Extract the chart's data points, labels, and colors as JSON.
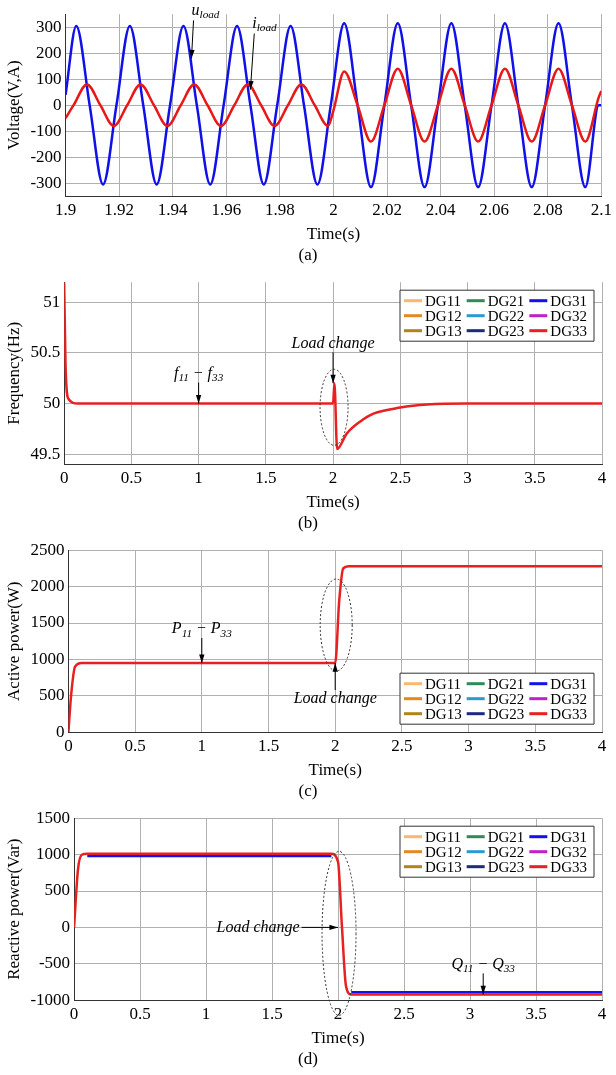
{
  "chart_data": [
    {
      "type": "line",
      "xlabel": "Time(s)",
      "ylabel": "Voltage(V,A)",
      "xlim": [
        1.9,
        2.1
      ],
      "xticks": [
        1.9,
        1.92,
        1.94,
        1.96,
        1.98,
        2,
        2.02,
        2.04,
        2.06,
        2.08,
        2.1
      ],
      "ylim": [
        -350,
        350
      ],
      "yticks": [
        -300,
        -200,
        -100,
        0,
        100,
        200,
        300
      ],
      "grid": true,
      "legend": false,
      "annotations": [
        {
          "text": "u$_{load}$",
          "x": 1.947,
          "y": 180
        },
        {
          "text": "i$_{load}$",
          "x": 1.969,
          "y": 60
        },
        "(a)"
      ],
      "series": [
        {
          "color": "#1010e8",
          "x": [
            1.9,
            1.904,
            1.909,
            1.914,
            1.919,
            1.924,
            1.929,
            1.934,
            1.939,
            1.944,
            1.949,
            1.954,
            1.959,
            1.964,
            1.969,
            1.974,
            1.979,
            1.984,
            1.989,
            1.994,
            1.999,
            2.004,
            2.009,
            2.014,
            2.019,
            2.024,
            2.029,
            2.034,
            2.039,
            2.044,
            2.049,
            2.054,
            2.059,
            2.064,
            2.069,
            2.074,
            2.079,
            2.084,
            2.089,
            2.094,
            2.099,
            2.1
          ],
          "values": [
            40,
            305,
            0,
            -305,
            0,
            305,
            0,
            -305,
            0,
            305,
            0,
            -305,
            0,
            305,
            0,
            -305,
            0,
            305,
            0,
            -305,
            0,
            315,
            0,
            -315,
            0,
            315,
            0,
            -315,
            0,
            315,
            0,
            -315,
            0,
            315,
            0,
            -315,
            0,
            315,
            0,
            -315,
            0,
            0
          ]
        },
        {
          "color": "#e81818",
          "x": [
            1.9,
            1.903,
            1.908,
            1.913,
            1.918,
            1.923,
            1.928,
            1.933,
            1.938,
            1.943,
            1.948,
            1.953,
            1.958,
            1.963,
            1.968,
            1.973,
            1.978,
            1.983,
            1.988,
            1.993,
            1.998,
            2.0,
            2.004,
            2.009,
            2.014,
            2.019,
            2.024,
            2.029,
            2.034,
            2.039,
            2.044,
            2.049,
            2.054,
            2.059,
            2.064,
            2.069,
            2.074,
            2.079,
            2.084,
            2.089,
            2.094,
            2.099,
            2.1
          ],
          "values": [
            -50,
            0,
            80,
            0,
            -80,
            0,
            80,
            0,
            -80,
            0,
            80,
            0,
            -80,
            0,
            80,
            0,
            -80,
            0,
            80,
            0,
            -80,
            -20,
            130,
            0,
            -140,
            0,
            140,
            0,
            -140,
            0,
            140,
            0,
            -140,
            0,
            140,
            0,
            -140,
            0,
            140,
            0,
            -140,
            30,
            55
          ]
        }
      ]
    },
    {
      "type": "line",
      "xlabel": "Time(s)",
      "ylabel": "Frequency(Hz)",
      "xlim": [
        0,
        4
      ],
      "xticks": [
        0,
        0.5,
        1,
        1.5,
        2,
        2.5,
        3,
        3.5,
        4
      ],
      "ylim": [
        49.4,
        51.2
      ],
      "yticks": [
        49.5,
        50,
        50.5,
        51
      ],
      "grid": true,
      "legend": "top right",
      "annotations": [
        {
          "text": "f$_{11}$ − f$_{33}$",
          "x": 1,
          "y": 50
        },
        {
          "text": "Load change",
          "x": 2,
          "y": 50.2
        },
        "(b)"
      ],
      "series": [
        {
          "name": "DG11",
          "color": "#f8b870"
        },
        {
          "name": "DG12",
          "color": "#e08a20"
        },
        {
          "name": "DG13",
          "color": "#b08418"
        },
        {
          "name": "DG21",
          "color": "#2e8a5a"
        },
        {
          "name": "DG22",
          "color": "#2a9ad0"
        },
        {
          "name": "DG23",
          "color": "#1a2a80"
        },
        {
          "name": "DG31",
          "color": "#1010f0"
        },
        {
          "name": "DG32",
          "color": "#c020c8"
        },
        {
          "name": "DG33",
          "color": "#e82020",
          "x": [
            0,
            0.01,
            0.03,
            0.1,
            2,
            2.01,
            2.03,
            2.1,
            2.2,
            2.3,
            2.5,
            2.7,
            3,
            4
          ],
          "values": [
            51.2,
            50.4,
            50.05,
            50,
            50,
            50.2,
            49.55,
            49.7,
            49.82,
            49.9,
            49.96,
            49.99,
            50,
            50
          ]
        }
      ]
    },
    {
      "type": "line",
      "xlabel": "Time(s)",
      "ylabel": "Active power(W)",
      "xlim": [
        0,
        4
      ],
      "xticks": [
        0,
        0.5,
        1,
        1.5,
        2,
        2.5,
        3,
        3.5,
        4
      ],
      "ylim": [
        0,
        2500
      ],
      "yticks": [
        0,
        500,
        1000,
        1500,
        2000,
        2500
      ],
      "grid": true,
      "legend": "bottom right",
      "annotations": [
        {
          "text": "P$_{11}$ − P$_{33}$",
          "x": 1,
          "y": 950
        },
        {
          "text": "Load change",
          "x": 2,
          "y": 950
        },
        "(c)"
      ],
      "series": [
        {
          "name": "DG11",
          "color": "#f8b870"
        },
        {
          "name": "DG12",
          "color": "#e08a20"
        },
        {
          "name": "DG13",
          "color": "#b08418"
        },
        {
          "name": "DG21",
          "color": "#2e8a5a"
        },
        {
          "name": "DG22",
          "color": "#2a9ad0"
        },
        {
          "name": "DG23",
          "color": "#1a2a80"
        },
        {
          "name": "DG31",
          "color": "#1010f0"
        },
        {
          "name": "DG32",
          "color": "#c020c8"
        },
        {
          "name": "DG33",
          "color": "#e82020",
          "x": [
            0,
            0.02,
            0.05,
            0.1,
            2,
            2.03,
            2.06,
            2.1,
            4
          ],
          "values": [
            0,
            500,
            900,
            950,
            950,
            1800,
            2250,
            2280,
            2280
          ]
        }
      ]
    },
    {
      "type": "line",
      "xlabel": "Time(s)",
      "ylabel": "Reactive power(Var)",
      "xlim": [
        0,
        4
      ],
      "xticks": [
        0,
        0.5,
        1,
        1.5,
        2,
        2.5,
        3,
        3.5,
        4
      ],
      "ylim": [
        -1000,
        1500
      ],
      "yticks": [
        -1000,
        -500,
        0,
        500,
        1000,
        1500
      ],
      "grid": true,
      "legend": "top right",
      "annotations": [
        {
          "text": "Load change",
          "x": 2,
          "y": 0
        },
        {
          "text": "Q$_{11}$ − Q$_{33}$",
          "x": 3.1,
          "y": -920
        },
        "(d)"
      ],
      "series": [
        {
          "name": "DG11",
          "color": "#f8b870"
        },
        {
          "name": "DG12",
          "color": "#e08a20"
        },
        {
          "name": "DG13",
          "color": "#b08418"
        },
        {
          "name": "DG21",
          "color": "#2e8a5a"
        },
        {
          "name": "DG22",
          "color": "#2a9ad0"
        },
        {
          "name": "DG23",
          "color": "#1a2a80"
        },
        {
          "name": "DG31",
          "color": "#1010f0",
          "x": [
            0.1,
            1.95,
            2,
            2.1,
            4
          ],
          "values": [
            980,
            980,
            null,
            -890,
            -890
          ]
        },
        {
          "name": "DG32",
          "color": "#c020c8"
        },
        {
          "name": "DG33",
          "color": "#e82020",
          "x": [
            0,
            0.03,
            0.06,
            0.1,
            1.95,
            2,
            2.03,
            2.06,
            2.1,
            4
          ],
          "values": [
            0,
            800,
            1000,
            1010,
            1010,
            900,
            0,
            -800,
            -920,
            -920
          ]
        }
      ]
    }
  ]
}
